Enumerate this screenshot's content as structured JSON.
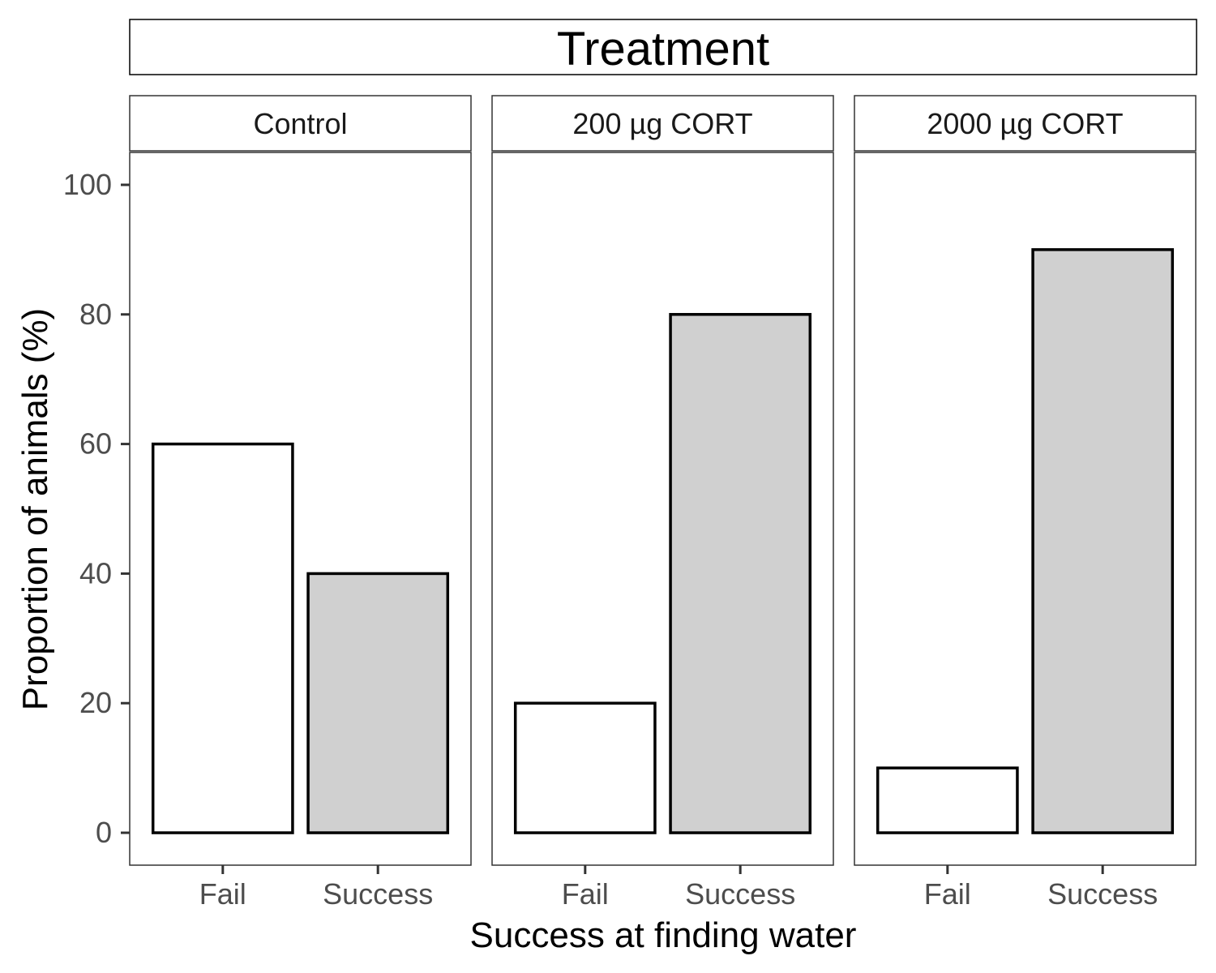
{
  "chart_data": {
    "type": "bar",
    "title": "Treatment",
    "xlabel": "Success at finding water",
    "ylabel": "Proportion of animals (%)",
    "ylim": [
      -5,
      105
    ],
    "yticks": [
      "0",
      "20",
      "40",
      "60",
      "80",
      "100"
    ],
    "categories": [
      "Fail",
      "Success"
    ],
    "fill_colors": {
      "Fail": "#ffffff",
      "Success": "#d0d0d0"
    },
    "grid": false,
    "panels": [
      {
        "name": "Control",
        "values": [
          60,
          40
        ]
      },
      {
        "name": "200 µg CORT",
        "values": [
          20,
          80
        ]
      },
      {
        "name": "2000 µg CORT",
        "values": [
          10,
          90
        ]
      }
    ]
  }
}
